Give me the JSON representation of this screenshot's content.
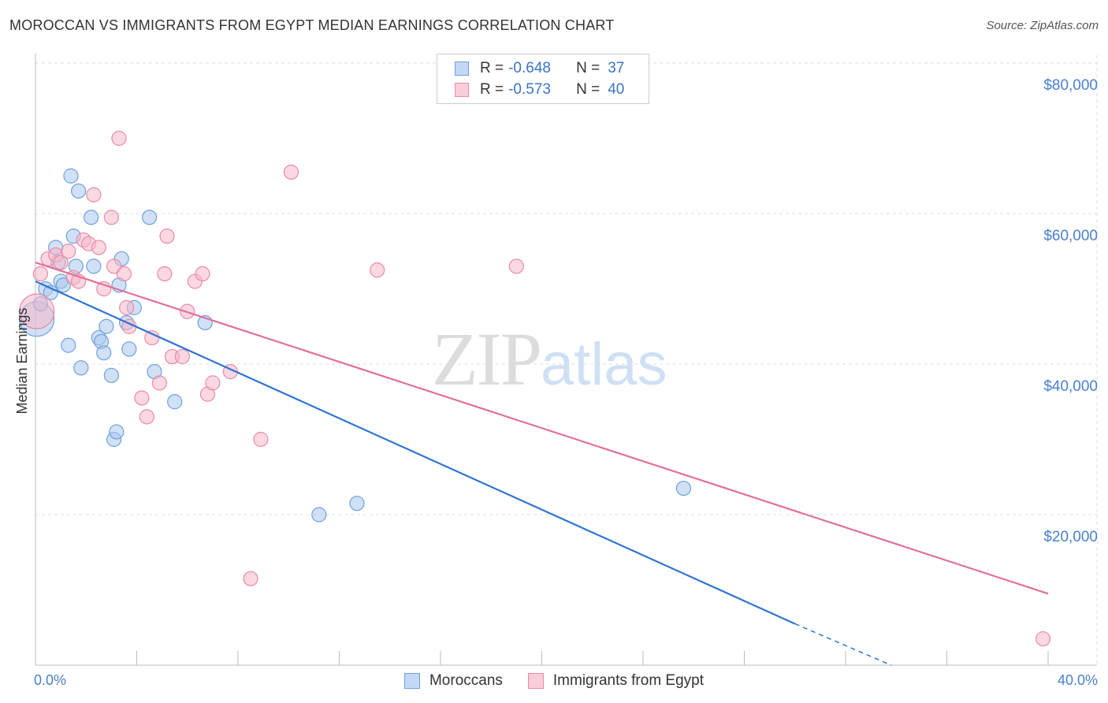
{
  "header": {
    "title": "MOROCCAN VS IMMIGRANTS FROM EGYPT MEDIAN EARNINGS CORRELATION CHART",
    "source": "Source: ZipAtlas.com"
  },
  "watermark": {
    "part1": "ZIP",
    "part2": "atlas"
  },
  "legend": {
    "rows": [
      {
        "r_label": "R = ",
        "r_value": "-0.648",
        "n_label": "N = ",
        "n_value": "37"
      },
      {
        "r_label": "R = ",
        "r_value": "-0.573",
        "n_label": "N = ",
        "n_value": "40"
      }
    ]
  },
  "bottom_legend": {
    "series1": "Moroccans",
    "series2": "Immigrants from Egypt"
  },
  "colors": {
    "blue_fill": "#aac8ef",
    "blue_stroke": "#6f9fdc",
    "blue_line": "#2f74d0",
    "pink_fill": "#f5b8c9",
    "pink_stroke": "#e88aa6",
    "pink_line": "#e0709a",
    "grid": "#dddddd",
    "axis": "#bbbbbb"
  },
  "chart_data": {
    "type": "scatter",
    "title": "MOROCCAN VS IMMIGRANTS FROM EGYPT MEDIAN EARNINGS CORRELATION CHART",
    "xlabel": "",
    "ylabel": "Median Earnings",
    "xlim": [
      0,
      40
    ],
    "ylim": [
      0,
      80000
    ],
    "x_tick_labels": [
      "0.0%",
      "40.0%"
    ],
    "y_ticks": [
      20000,
      40000,
      60000,
      80000
    ],
    "y_tick_labels": [
      "$20,000",
      "$40,000",
      "$60,000",
      "$80,000"
    ],
    "series": [
      {
        "name": "Moroccans",
        "R": -0.648,
        "N": 37,
        "trend": {
          "x": [
            0,
            30
          ],
          "y": [
            51000,
            5500
          ],
          "dashed_to": [
            33.8,
            0
          ]
        },
        "points": [
          [
            0.05,
            46000,
            "L"
          ],
          [
            0.2,
            48000
          ],
          [
            0.4,
            50000
          ],
          [
            0.6,
            49500
          ],
          [
            0.8,
            55500
          ],
          [
            0.9,
            53500
          ],
          [
            1.0,
            51000
          ],
          [
            1.1,
            50500
          ],
          [
            1.3,
            42500
          ],
          [
            1.4,
            65000
          ],
          [
            1.5,
            57000
          ],
          [
            1.6,
            53000
          ],
          [
            1.7,
            63000
          ],
          [
            1.8,
            39500
          ],
          [
            2.2,
            59500
          ],
          [
            2.3,
            53000
          ],
          [
            2.5,
            43500
          ],
          [
            2.6,
            43000
          ],
          [
            2.7,
            41500
          ],
          [
            2.8,
            45000
          ],
          [
            3.0,
            38500
          ],
          [
            3.1,
            30000
          ],
          [
            3.2,
            31000
          ],
          [
            3.3,
            50500
          ],
          [
            3.4,
            54000
          ],
          [
            3.6,
            45500
          ],
          [
            3.7,
            42000
          ],
          [
            3.9,
            47500
          ],
          [
            4.5,
            59500
          ],
          [
            4.7,
            39000
          ],
          [
            5.5,
            35000
          ],
          [
            6.7,
            45500
          ],
          [
            11.2,
            20000
          ],
          [
            12.7,
            21500
          ],
          [
            25.6,
            23500
          ]
        ]
      },
      {
        "name": "Immigrants from Egypt",
        "R": -0.573,
        "N": 40,
        "trend": {
          "x": [
            0,
            40
          ],
          "y": [
            53500,
            9500
          ]
        },
        "points": [
          [
            0.05,
            47000,
            "L"
          ],
          [
            0.2,
            52000
          ],
          [
            0.5,
            54000
          ],
          [
            0.8,
            54500
          ],
          [
            1.0,
            53500
          ],
          [
            1.3,
            55000
          ],
          [
            1.5,
            51500
          ],
          [
            1.7,
            51000
          ],
          [
            1.9,
            56500
          ],
          [
            2.1,
            56000
          ],
          [
            2.3,
            62500
          ],
          [
            2.5,
            55500
          ],
          [
            2.7,
            50000
          ],
          [
            3.0,
            59500
          ],
          [
            3.1,
            53000
          ],
          [
            3.3,
            70000
          ],
          [
            3.5,
            52000
          ],
          [
            3.6,
            47500
          ],
          [
            3.7,
            45000
          ],
          [
            4.2,
            35500
          ],
          [
            4.4,
            33000
          ],
          [
            4.6,
            43500
          ],
          [
            4.9,
            37500
          ],
          [
            5.1,
            52000
          ],
          [
            5.2,
            57000
          ],
          [
            5.4,
            41000
          ],
          [
            5.8,
            41000
          ],
          [
            6.0,
            47000
          ],
          [
            6.3,
            51000
          ],
          [
            6.6,
            52000
          ],
          [
            6.8,
            36000
          ],
          [
            7.0,
            37500
          ],
          [
            7.7,
            39000
          ],
          [
            8.5,
            11500
          ],
          [
            8.9,
            30000
          ],
          [
            10.1,
            65500
          ],
          [
            13.5,
            52500
          ],
          [
            19.0,
            53000
          ],
          [
            39.8,
            3500
          ]
        ]
      }
    ]
  }
}
